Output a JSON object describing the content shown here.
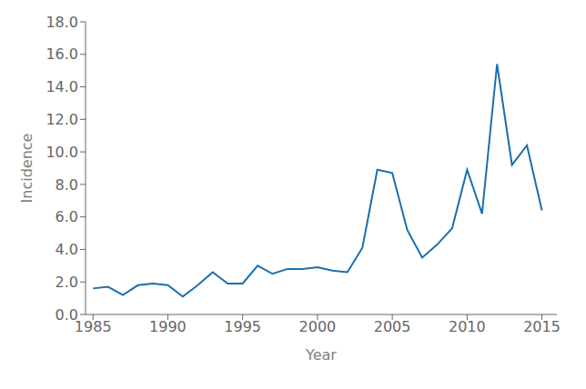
{
  "chart_data": {
    "type": "line",
    "xlabel": "Year",
    "ylabel": "Incidence",
    "x": [
      1985,
      1986,
      1987,
      1988,
      1989,
      1990,
      1991,
      1992,
      1993,
      1994,
      1995,
      1996,
      1997,
      1998,
      1999,
      2000,
      2001,
      2002,
      2003,
      2004,
      2005,
      2006,
      2007,
      2008,
      2009,
      2010,
      2011,
      2012,
      2013,
      2014,
      2015
    ],
    "values": [
      1.6,
      1.7,
      1.2,
      1.8,
      1.9,
      1.8,
      1.1,
      1.8,
      2.6,
      1.9,
      1.9,
      3.0,
      2.5,
      2.8,
      2.8,
      2.9,
      2.7,
      2.6,
      4.1,
      8.9,
      8.7,
      5.2,
      3.5,
      4.3,
      5.3,
      8.9,
      6.2,
      15.4,
      9.2,
      10.4,
      6.4
    ],
    "color": "#1a6faf",
    "xlim": [
      1984.5,
      2016.0
    ],
    "ylim": [
      0.0,
      18.0
    ],
    "xticks": [
      1985,
      1990,
      1995,
      2000,
      2005,
      2010,
      2015
    ],
    "yticks": [
      {
        "value": 0,
        "label": "0.0"
      },
      {
        "value": 2,
        "label": "2.0"
      },
      {
        "value": 4,
        "label": "4.0"
      },
      {
        "value": 6,
        "label": "6.0"
      },
      {
        "value": 8,
        "label": "8.0"
      },
      {
        "value": 10,
        "label": "10.0"
      },
      {
        "value": 12,
        "label": "12.0"
      },
      {
        "value": 14,
        "label": "14.0"
      },
      {
        "value": 16,
        "label": "16.0"
      },
      {
        "value": 18,
        "label": "18.0"
      }
    ],
    "grid": false
  }
}
